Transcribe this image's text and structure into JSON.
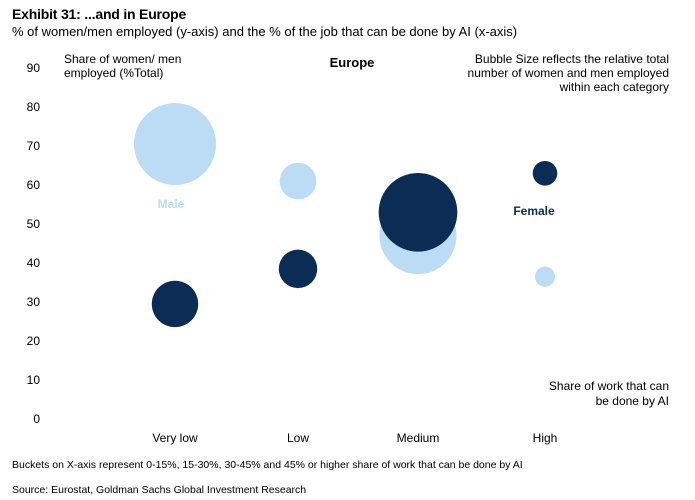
{
  "header": {
    "title": "Exhibit 31: ...and in Europe",
    "subtitle": "% of women/men employed (y-axis) and the % of the job that can be done by AI (x-axis)"
  },
  "chart_data": {
    "type": "bubble",
    "title": "Europe",
    "ylabel_lines": [
      "Share of women/ men",
      "employed (%Total)"
    ],
    "xlabel_lines": [
      "Share of work that can",
      "be done by AI"
    ],
    "note_lines": [
      "Bubble Size  reflects the relative total",
      "number of women and men employed",
      "within each category"
    ],
    "categories": [
      "Very low",
      "Low",
      "Medium",
      "High"
    ],
    "ylim": [
      0,
      90
    ],
    "yticks": [
      0,
      10,
      20,
      30,
      40,
      50,
      60,
      70,
      80,
      90
    ],
    "grid": false,
    "series": [
      {
        "name": "Male",
        "color": "#bcdcf5",
        "points": [
          {
            "category": "Very low",
            "y": 70.5,
            "size": 100
          },
          {
            "category": "Low",
            "y": 61,
            "size": 20
          },
          {
            "category": "Medium",
            "y": 47,
            "size": 88
          },
          {
            "category": "High",
            "y": 36.5,
            "size": 6
          }
        ]
      },
      {
        "name": "Female",
        "color": "#0a2c55",
        "points": [
          {
            "category": "Very low",
            "y": 29.5,
            "size": 32
          },
          {
            "category": "Low",
            "y": 38.5,
            "size": 22
          },
          {
            "category": "Medium",
            "y": 53,
            "size": 92
          },
          {
            "category": "High",
            "y": 63,
            "size": 9
          }
        ]
      }
    ]
  },
  "footnote": "Buckets on X-axis represent 0-15%, 15-30%, 30-45% and 45% or higher share of work that can be done by AI",
  "source": "Source: Eurostat, Goldman Sachs Global Investment Research"
}
